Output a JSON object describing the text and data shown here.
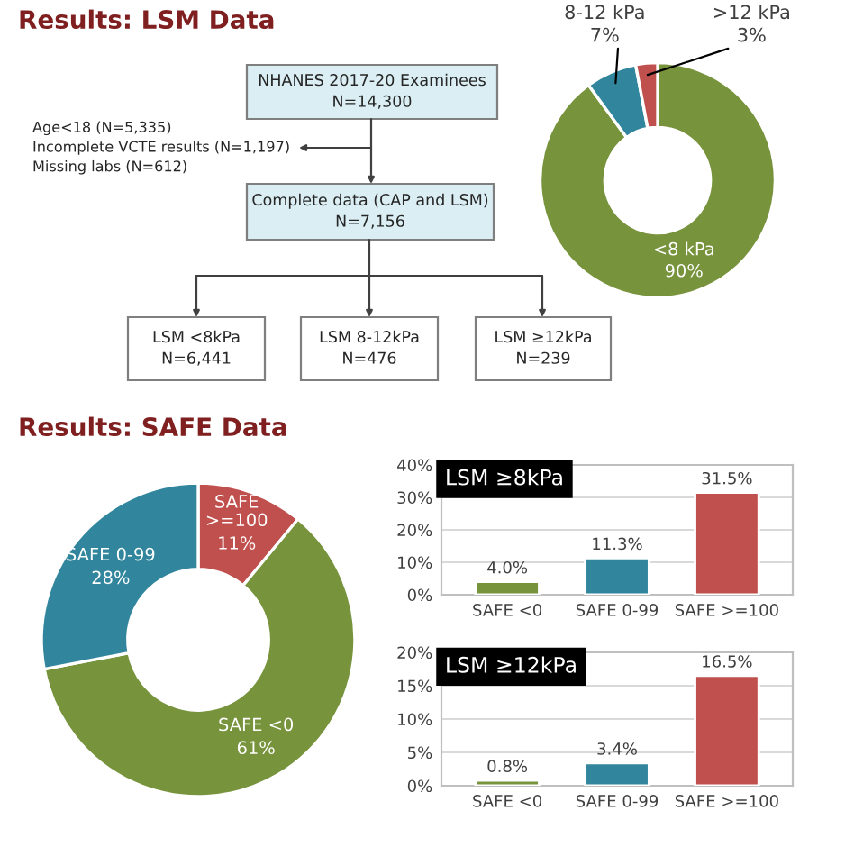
{
  "chart_data": [
    {
      "type": "other",
      "title": "Results: LSM Data",
      "annotations": [
        "NHANES 2017-20 Examinees\nN=14,300",
        "Age<18 (N=5,335)\nIncomplete VCTE results (N=1,197)\nMissing labs (N=612)",
        "Complete data (CAP and LSM)\nN=7,156",
        "LSM <8kPa\nN=6,441",
        "LSM 8-12kPa\nN=476",
        "LSM ≥12kPa\nN=239"
      ]
    },
    {
      "type": "donut",
      "categories": [
        "<8 kPa",
        "8-12 kPa",
        ">12 kPa"
      ],
      "values": [
        90,
        7,
        3
      ],
      "colors": [
        "#77933c",
        "#31859c",
        "#c0504d"
      ],
      "value_labels": [
        "90%",
        "7%",
        "3%"
      ]
    },
    {
      "type": "donut",
      "title": "Results: SAFE Data",
      "categories": [
        "SAFE >=100",
        "SAFE <0",
        "SAFE 0-99"
      ],
      "values": [
        11,
        61,
        28
      ],
      "colors": [
        "#c0504d",
        "#77933c",
        "#31859c"
      ],
      "value_labels": [
        "11%",
        "61%",
        "28%"
      ]
    },
    {
      "type": "bar",
      "title": "LSM ≥8kPa",
      "categories": [
        "SAFE <0",
        "SAFE 0-99",
        "SAFE >=100"
      ],
      "values": [
        4.0,
        11.3,
        31.5
      ],
      "colors": [
        "#77933c",
        "#31859c",
        "#c0504d"
      ],
      "value_labels": [
        "4.0%",
        "11.3%",
        "31.5%"
      ],
      "ylim": [
        0,
        40
      ],
      "yticks": [
        {
          "value": 0,
          "label": "0%"
        },
        {
          "value": 10,
          "label": "10%"
        },
        {
          "value": 20,
          "label": "20%"
        },
        {
          "value": 30,
          "label": "30%"
        },
        {
          "value": 40,
          "label": "40%"
        }
      ],
      "grid": "y"
    },
    {
      "type": "bar",
      "title": "LSM ≥12kPa",
      "categories": [
        "SAFE <0",
        "SAFE 0-99",
        "SAFE >=100"
      ],
      "values": [
        0.8,
        3.4,
        16.5
      ],
      "colors": [
        "#77933c",
        "#31859c",
        "#c0504d"
      ],
      "value_labels": [
        "0.8%",
        "3.4%",
        "16.5%"
      ],
      "ylim": [
        0,
        20
      ],
      "yticks": [
        {
          "value": 0,
          "label": "0%"
        },
        {
          "value": 5,
          "label": "5%"
        },
        {
          "value": 10,
          "label": "10%"
        },
        {
          "value": 15,
          "label": "15%"
        },
        {
          "value": 20,
          "label": "20%"
        }
      ],
      "grid": "y"
    }
  ]
}
